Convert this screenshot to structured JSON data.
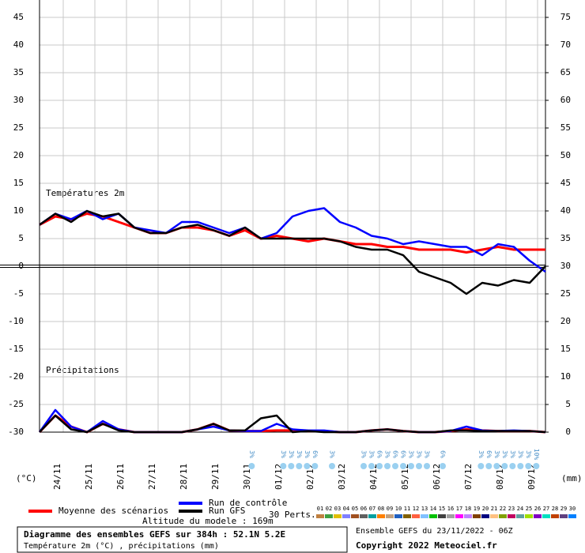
{
  "chart_data": {
    "type": "line",
    "title": "Diagramme des ensembles GEFS sur 384h : 52.1N 5.2E",
    "subtitle": "Température 2m (°C) , précipitations (mm)",
    "run_label": "Ensemble GEFS du 23/11/2022 - 06Z",
    "copyright": "Copyright 2022 Meteociel.fr",
    "altitude": "Altitude du modele : 169m",
    "temp_label": "Températures 2m",
    "precip_label": "Précipitations",
    "ylabel": "(°C)",
    "y2label": "(mm)",
    "perturbations_label": "30 Perts.",
    "x": [
      0,
      12,
      24,
      36,
      48,
      60,
      72,
      84,
      96,
      108,
      120,
      132,
      144,
      156,
      168,
      180,
      192,
      204,
      216,
      228,
      240,
      252,
      264,
      276,
      288,
      300,
      312,
      324,
      336,
      348,
      360,
      372,
      384
    ],
    "xlim": [
      0,
      384
    ],
    "xticks": [
      {
        "value": 18,
        "label": "24/11"
      },
      {
        "value": 42,
        "label": "25/11"
      },
      {
        "value": 66,
        "label": "26/11"
      },
      {
        "value": 90,
        "label": "27/11"
      },
      {
        "value": 114,
        "label": "28/11"
      },
      {
        "value": 138,
        "label": "29/11"
      },
      {
        "value": 162,
        "label": "30/11"
      },
      {
        "value": 186,
        "label": "01/12"
      },
      {
        "value": 210,
        "label": "02/12"
      },
      {
        "value": 234,
        "label": "03/12"
      },
      {
        "value": 258,
        "label": "04/12"
      },
      {
        "value": 282,
        "label": "05/12"
      },
      {
        "value": 306,
        "label": "06/12"
      },
      {
        "value": 330,
        "label": "07/12"
      },
      {
        "value": 354,
        "label": "08/12"
      },
      {
        "value": 378,
        "label": "09/12"
      }
    ],
    "ylim": [
      -30,
      45
    ],
    "yticks": [
      45,
      40,
      35,
      30,
      25,
      20,
      15,
      10,
      5,
      0,
      -5,
      -10,
      -15,
      -20,
      -25,
      -30
    ],
    "y2lim": [
      0,
      75
    ],
    "y2ticks": [
      75,
      70,
      65,
      60,
      55,
      50,
      45,
      40,
      35,
      30,
      25,
      20,
      15,
      10,
      5,
      0
    ],
    "grid": true,
    "series": [
      {
        "name": "Moyenne des scénarios",
        "color": "#ff0000",
        "values": [
          7.5,
          9,
          8.5,
          9.5,
          9,
          8,
          7,
          6,
          6,
          7,
          7,
          6.5,
          5.5,
          6.5,
          5,
          5.5,
          5,
          4.5,
          5,
          4.5,
          4,
          4,
          3.5,
          3.5,
          3,
          3,
          3,
          2.5,
          3,
          3.5,
          3,
          3,
          3
        ]
      },
      {
        "name": "Run de contrôle",
        "color": "#0000ff",
        "values": [
          7.5,
          9.5,
          8.5,
          10,
          8.5,
          9.5,
          7,
          6.5,
          6,
          8,
          8,
          7,
          6,
          7,
          5,
          6,
          9,
          10,
          10.5,
          8,
          7,
          5.5,
          5,
          4,
          4.5,
          4,
          3.5,
          3.5,
          2,
          4,
          3.5,
          1,
          -1
        ]
      },
      {
        "name": "Run GFS",
        "color": "#000000",
        "values": [
          7.5,
          9.5,
          8,
          10,
          9,
          9.5,
          7,
          6,
          6,
          7,
          7.5,
          6.5,
          5.5,
          7,
          5,
          5,
          5,
          5,
          5,
          4.5,
          3.5,
          3,
          3,
          2,
          -1,
          -2,
          -3,
          -5,
          -3,
          -3.5,
          -2.5,
          -3,
          0
        ]
      },
      {
        "axis": "y2",
        "color": "#ff0000",
        "values": [
          0,
          3,
          1,
          0,
          1.5,
          0.5,
          0,
          0,
          0,
          0,
          0.5,
          1.5,
          0.3,
          0.2,
          0.2,
          0.3,
          0.3,
          0.2,
          0.2,
          0,
          0,
          0.3,
          0.5,
          0.2,
          0,
          0,
          0.2,
          0.5,
          0.3,
          0.2,
          0.2,
          0.2,
          0
        ]
      },
      {
        "axis": "y2",
        "color": "#0000ff",
        "values": [
          0,
          4,
          1,
          0,
          2,
          0.5,
          0,
          0,
          0,
          0,
          0.5,
          1,
          0.3,
          0.2,
          0.2,
          1.5,
          0.5,
          0.3,
          0.3,
          0,
          0,
          0.3,
          0.5,
          0.2,
          0,
          0,
          0.2,
          1,
          0.3,
          0.2,
          0.3,
          0.2,
          0
        ]
      },
      {
        "axis": "y2",
        "color": "#000000",
        "values": [
          0,
          3,
          0.5,
          0,
          1.5,
          0.3,
          0,
          0,
          0,
          0,
          0.5,
          1.5,
          0.3,
          0.3,
          2.5,
          3,
          0,
          0.2,
          0,
          0,
          0,
          0.3,
          0.5,
          0.2,
          0,
          0,
          0.3,
          0.3,
          0.2,
          0.2,
          0.2,
          0.2,
          0
        ]
      }
    ],
    "perturbations": [
      {
        "label": "01",
        "color": "#c08040"
      },
      {
        "label": "02",
        "color": "#40a040"
      },
      {
        "label": "03",
        "color": "#e0c000"
      },
      {
        "label": "04",
        "color": "#8080ff"
      },
      {
        "label": "05",
        "color": "#a05020"
      },
      {
        "label": "06",
        "color": "#606060"
      },
      {
        "label": "07",
        "color": "#00a0a0"
      },
      {
        "label": "08",
        "color": "#ff8000"
      },
      {
        "label": "09",
        "color": "#c0a080"
      },
      {
        "label": "10",
        "color": "#2060c0"
      },
      {
        "label": "11",
        "color": "#806000"
      },
      {
        "label": "12",
        "color": "#ff6040"
      },
      {
        "label": "13",
        "color": "#80c0ff"
      },
      {
        "label": "14",
        "color": "#00c000"
      },
      {
        "label": "15",
        "color": "#404040"
      },
      {
        "label": "16",
        "color": "#a0a0a0"
      },
      {
        "label": "17",
        "color": "#ff00ff"
      },
      {
        "label": "18",
        "color": "#c080ff"
      },
      {
        "label": "19",
        "color": "#804000"
      },
      {
        "label": "20",
        "color": "#000080"
      },
      {
        "label": "21",
        "color": "#ffc080"
      },
      {
        "label": "22",
        "color": "#80a000"
      },
      {
        "label": "23",
        "color": "#c00060"
      },
      {
        "label": "24",
        "color": "#60a0a0"
      },
      {
        "label": "25",
        "color": "#a0e000"
      },
      {
        "label": "26",
        "color": "#8000c0"
      },
      {
        "label": "27",
        "color": "#00e0c0"
      },
      {
        "label": "28",
        "color": "#c04000"
      },
      {
        "label": "29",
        "color": "#604080"
      },
      {
        "label": "30",
        "color": "#0080ff"
      }
    ],
    "snow": [
      {
        "x": 161,
        "label": "3%"
      },
      {
        "x": 185,
        "label": "3%"
      },
      {
        "x": 191,
        "label": "3%"
      },
      {
        "x": 197,
        "label": "3%"
      },
      {
        "x": 203,
        "label": "3%"
      },
      {
        "x": 209,
        "label": "6%"
      },
      {
        "x": 222,
        "label": "3%"
      },
      {
        "x": 246,
        "label": "3%"
      },
      {
        "x": 252,
        "label": "3%"
      },
      {
        "x": 258,
        "label": "6%"
      },
      {
        "x": 264,
        "label": "3%"
      },
      {
        "x": 270,
        "label": "6%"
      },
      {
        "x": 276,
        "label": "6%"
      },
      {
        "x": 282,
        "label": "3%"
      },
      {
        "x": 288,
        "label": "3%"
      },
      {
        "x": 294,
        "label": "3%"
      },
      {
        "x": 306,
        "label": "6%"
      },
      {
        "x": 335,
        "label": "3%"
      },
      {
        "x": 341,
        "label": "6%"
      },
      {
        "x": 347,
        "label": "3%"
      },
      {
        "x": 353,
        "label": "3%"
      },
      {
        "x": 359,
        "label": "3%"
      },
      {
        "x": 365,
        "label": "3%"
      },
      {
        "x": 371,
        "label": "3%"
      },
      {
        "x": 377,
        "label": "10%"
      }
    ]
  }
}
